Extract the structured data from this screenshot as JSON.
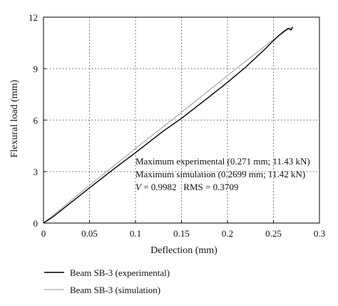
{
  "chart_data": {
    "type": "line",
    "title": "",
    "xlabel": "Deflection (mm)",
    "ylabel": "Flexural load (mm)",
    "xlim": [
      0,
      0.3
    ],
    "ylim": [
      0,
      12
    ],
    "xticks": [
      0,
      0.05,
      0.1,
      0.15,
      0.2,
      0.25,
      0.3
    ],
    "xtick_labels": [
      "0",
      "0.05",
      "0.1",
      "0.15",
      "0.2",
      "0.25",
      "0.3"
    ],
    "yticks": [
      0,
      3,
      6,
      9,
      12
    ],
    "ytick_labels": [
      "0",
      "3",
      "6",
      "9",
      "12"
    ],
    "grid": "dotted",
    "legend_position": "bottom-left, outside plot",
    "series": [
      {
        "name": "Beam SB-3 (experimental)",
        "color": "#000000",
        "x": [
          0,
          0.01,
          0.03,
          0.05,
          0.08,
          0.1,
          0.13,
          0.15,
          0.18,
          0.2,
          0.22,
          0.24,
          0.255,
          0.262,
          0.266,
          0.268,
          0.269,
          0.271
        ],
        "y": [
          0,
          0.35,
          1.2,
          2.05,
          3.3,
          4.1,
          5.35,
          6.1,
          7.35,
          8.2,
          9.1,
          10.1,
          10.9,
          11.2,
          11.35,
          11.3,
          11.25,
          11.43
        ]
      },
      {
        "name": "Beam SB-3 (simulation)",
        "color": "#9a9a9a",
        "x": [
          0,
          0.05,
          0.1,
          0.15,
          0.2,
          0.25,
          0.2699
        ],
        "y": [
          0,
          2.2,
          4.35,
          6.45,
          8.6,
          10.7,
          11.42
        ]
      }
    ],
    "annotations": [
      {
        "text": "Maximum experimental (0.271 mm; 11.43 kN)"
      },
      {
        "text": "Maximum simulation (0.2699 mm; 11.42 kN)"
      },
      {
        "text_italic": "V",
        "text": " = 0.9982   RMS = 0.3709"
      }
    ]
  }
}
